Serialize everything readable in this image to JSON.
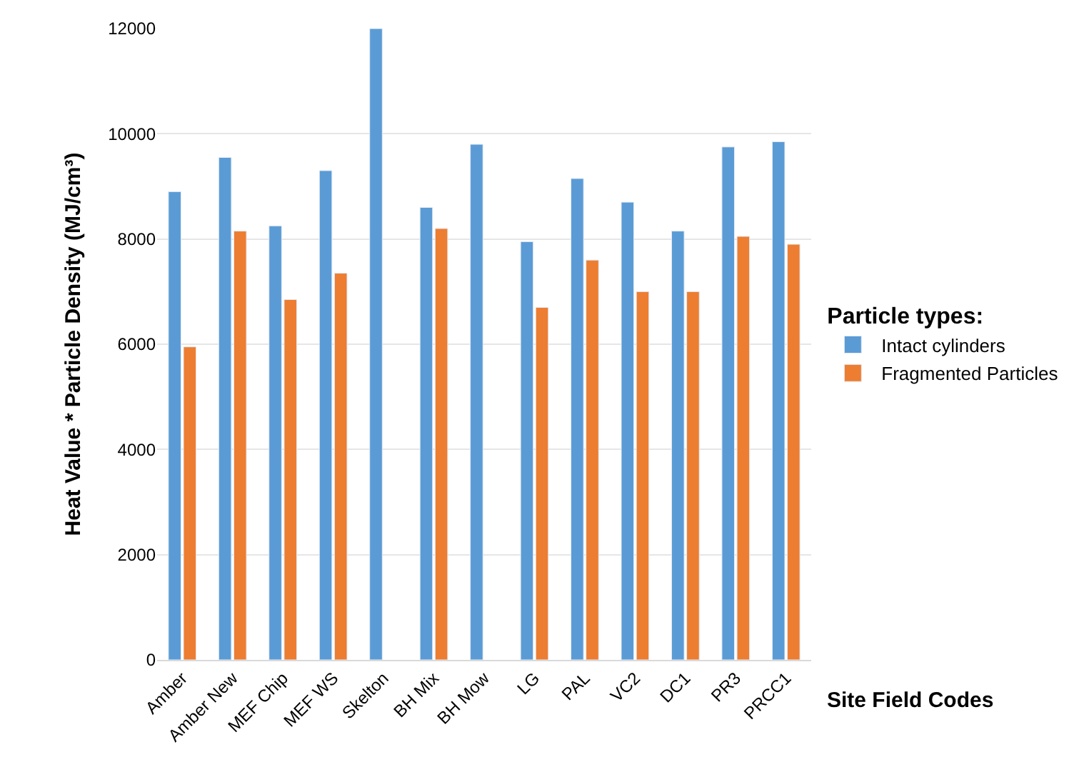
{
  "chart_data": {
    "type": "bar",
    "categories": [
      "Amber",
      "Amber New",
      "MEF Chip",
      "MEF WS",
      "Skelton",
      "BH Mix",
      "BH Mow",
      "LG",
      "PAL",
      "VC2",
      "DC1",
      "PR3",
      "PRCC1"
    ],
    "series": [
      {
        "name": "Intact cylinders",
        "color": "#5b9bd5",
        "values": [
          8900,
          9550,
          8250,
          9300,
          12000,
          8600,
          9800,
          7950,
          9150,
          8700,
          8150,
          9750,
          9850
        ]
      },
      {
        "name": "Fragmented Particles",
        "color": "#ed7d31",
        "values": [
          5950,
          8150,
          6850,
          7350,
          null,
          8200,
          null,
          6700,
          7600,
          7000,
          7000,
          8050,
          7900
        ]
      }
    ],
    "xlabel": "Site Field Codes",
    "ylabel": "Heat Value * Particle Density (MJ/cm³)",
    "legend_title": "Particle types:",
    "ylim": [
      0,
      12000
    ],
    "yticks": [
      0,
      2000,
      4000,
      6000,
      8000,
      10000,
      12000
    ],
    "grid": "y",
    "legend": "right"
  }
}
